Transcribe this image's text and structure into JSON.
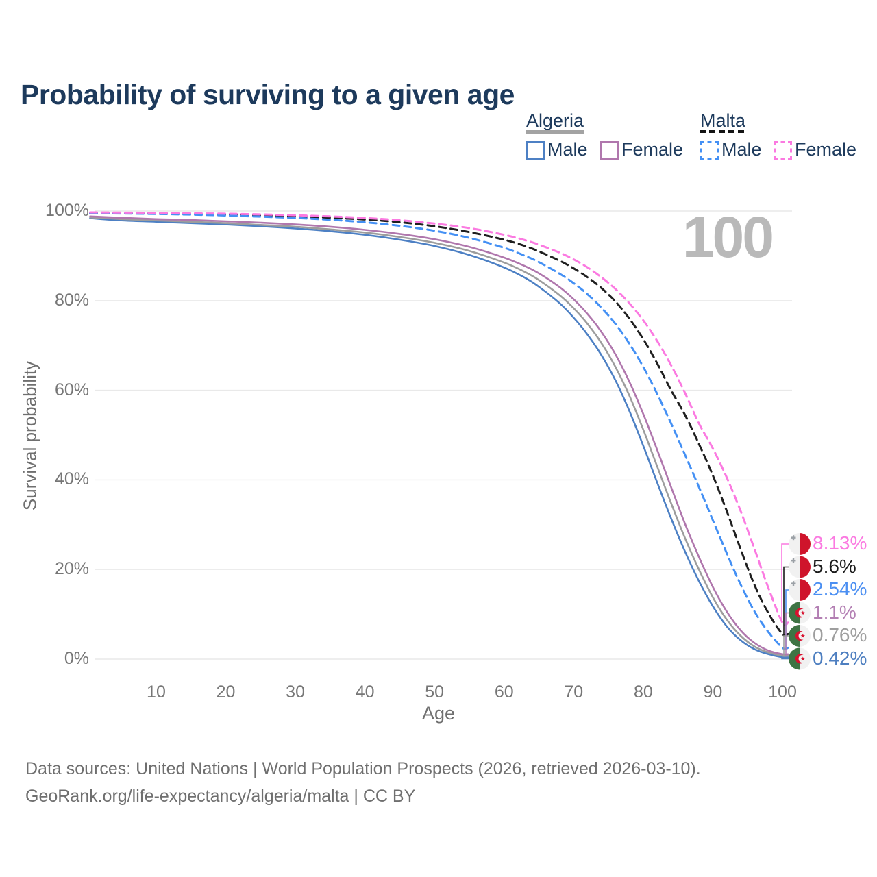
{
  "page": {
    "title": "Probability of surviving to a given age"
  },
  "watermark": "100",
  "legend": {
    "groups": [
      {
        "label": "Algeria",
        "line_style": "solid",
        "underline_color": "#a3a3a3",
        "items": [
          {
            "label": "Male",
            "color": "#4d80c4",
            "dashed": false
          },
          {
            "label": "Female",
            "color": "#b077ad",
            "dashed": false
          }
        ]
      },
      {
        "label": "Malta",
        "line_style": "dashed",
        "underline_color": "#141414",
        "items": [
          {
            "label": "Male",
            "color": "#4490f4",
            "dashed": true
          },
          {
            "label": "Female",
            "color": "#fb7ae1",
            "dashed": true
          }
        ]
      }
    ]
  },
  "chart_data": {
    "type": "line",
    "title": "Probability of surviving to a given age",
    "xlabel": "Age",
    "ylabel": "Survival probability",
    "xlim": [
      0,
      100
    ],
    "ylim": [
      0,
      100
    ],
    "grid": "horizontal",
    "legend_position": "top-right",
    "x_ticks": [
      {
        "label": "10",
        "value": 10
      },
      {
        "label": "20",
        "value": 20
      },
      {
        "label": "30",
        "value": 30
      },
      {
        "label": "40",
        "value": 40
      },
      {
        "label": "50",
        "value": 50
      },
      {
        "label": "60",
        "value": 60
      },
      {
        "label": "70",
        "value": 70
      },
      {
        "label": "80",
        "value": 80
      },
      {
        "label": "90",
        "value": 90
      },
      {
        "label": "100",
        "value": 100
      }
    ],
    "y_ticks": [
      {
        "label": "0%",
        "value": 0
      },
      {
        "label": "20%",
        "value": 20
      },
      {
        "label": "40%",
        "value": 40
      },
      {
        "label": "60%",
        "value": 60
      },
      {
        "label": "80%",
        "value": 80
      },
      {
        "label": "100%",
        "value": 100
      }
    ],
    "series": [
      {
        "id": "algeria-male",
        "name": "Algeria Male",
        "country": "Algeria",
        "sex": "Male",
        "color": "#4d80c4",
        "line_style": "solid",
        "end_label": "0.42%",
        "end_value": 0.42,
        "points": [
          [
            0.5,
            98.4
          ],
          [
            5,
            97.9
          ],
          [
            10,
            97.6
          ],
          [
            15,
            97.3
          ],
          [
            20,
            97.0
          ],
          [
            25,
            96.6
          ],
          [
            30,
            96.1
          ],
          [
            35,
            95.5
          ],
          [
            40,
            94.7
          ],
          [
            45,
            93.6
          ],
          [
            50,
            92.2
          ],
          [
            55,
            90.2
          ],
          [
            60,
            87.4
          ],
          [
            63,
            85.1
          ],
          [
            65,
            83.1
          ],
          [
            68,
            79.4
          ],
          [
            70,
            76.2
          ],
          [
            72,
            72.4
          ],
          [
            74,
            67.8
          ],
          [
            76,
            62.2
          ],
          [
            78,
            55.4
          ],
          [
            80,
            47.6
          ],
          [
            82,
            39.4
          ],
          [
            84,
            31.4
          ],
          [
            86,
            24.0
          ],
          [
            88,
            17.4
          ],
          [
            90,
            11.8
          ],
          [
            92,
            7.3
          ],
          [
            94,
            4.2
          ],
          [
            96,
            2.2
          ],
          [
            98,
            1.1
          ],
          [
            100,
            0.42
          ],
          [
            100.8,
            0.42
          ]
        ]
      },
      {
        "id": "algeria-both",
        "name": "Algeria Both sexes",
        "country": "Algeria",
        "sex": "Both",
        "color": "#9d9d9d",
        "line_style": "solid",
        "end_label": "0.76%",
        "end_value": 0.76,
        "points": [
          [
            0.5,
            98.6
          ],
          [
            5,
            98.2
          ],
          [
            10,
            97.9
          ],
          [
            15,
            97.6
          ],
          [
            20,
            97.3
          ],
          [
            25,
            96.9
          ],
          [
            30,
            96.5
          ],
          [
            35,
            95.9
          ],
          [
            40,
            95.2
          ],
          [
            45,
            94.2
          ],
          [
            50,
            92.9
          ],
          [
            55,
            91.1
          ],
          [
            60,
            88.5
          ],
          [
            63,
            86.4
          ],
          [
            65,
            84.6
          ],
          [
            68,
            81.2
          ],
          [
            70,
            78.3
          ],
          [
            72,
            74.8
          ],
          [
            74,
            70.5
          ],
          [
            76,
            65.2
          ],
          [
            78,
            58.8
          ],
          [
            80,
            51.2
          ],
          [
            82,
            43.0
          ],
          [
            84,
            34.8
          ],
          [
            86,
            27.0
          ],
          [
            88,
            20.0
          ],
          [
            90,
            13.8
          ],
          [
            92,
            8.8
          ],
          [
            94,
            5.2
          ],
          [
            96,
            2.8
          ],
          [
            98,
            1.5
          ],
          [
            100,
            0.76
          ],
          [
            100.8,
            0.76
          ]
        ]
      },
      {
        "id": "algeria-female",
        "name": "Algeria Female",
        "country": "Algeria",
        "sex": "Female",
        "color": "#b077ad",
        "line_style": "solid",
        "end_label": "1.1%",
        "end_value": 1.1,
        "points": [
          [
            0.5,
            98.8
          ],
          [
            5,
            98.5
          ],
          [
            10,
            98.2
          ],
          [
            15,
            98.0
          ],
          [
            20,
            97.7
          ],
          [
            25,
            97.4
          ],
          [
            30,
            97.0
          ],
          [
            35,
            96.5
          ],
          [
            40,
            95.8
          ],
          [
            45,
            94.9
          ],
          [
            50,
            93.7
          ],
          [
            55,
            92.0
          ],
          [
            60,
            89.6
          ],
          [
            63,
            87.7
          ],
          [
            65,
            86.1
          ],
          [
            68,
            83.0
          ],
          [
            70,
            80.3
          ],
          [
            72,
            77.0
          ],
          [
            74,
            73.0
          ],
          [
            76,
            68.0
          ],
          [
            78,
            61.9
          ],
          [
            80,
            54.7
          ],
          [
            82,
            46.7
          ],
          [
            84,
            38.4
          ],
          [
            86,
            30.2
          ],
          [
            88,
            22.8
          ],
          [
            90,
            16.1
          ],
          [
            92,
            10.6
          ],
          [
            94,
            6.4
          ],
          [
            96,
            3.6
          ],
          [
            98,
            1.9
          ],
          [
            100,
            1.1
          ],
          [
            100.8,
            1.1
          ]
        ]
      },
      {
        "id": "malta-both",
        "name": "Malta Both sexes",
        "country": "Malta",
        "sex": "Both",
        "color": "#1f1f1f",
        "line_style": "dashed",
        "end_label": "5.6%",
        "end_value": 5.6,
        "points": [
          [
            0.5,
            99.6
          ],
          [
            5,
            99.55
          ],
          [
            10,
            99.5
          ],
          [
            15,
            99.4
          ],
          [
            20,
            99.25
          ],
          [
            25,
            99.05
          ],
          [
            30,
            98.8
          ],
          [
            35,
            98.5
          ],
          [
            40,
            98.1
          ],
          [
            45,
            97.5
          ],
          [
            50,
            96.6
          ],
          [
            55,
            95.3
          ],
          [
            60,
            93.6
          ],
          [
            63,
            92.2
          ],
          [
            65,
            91.0
          ],
          [
            68,
            88.9
          ],
          [
            70,
            87.2
          ],
          [
            72,
            85.2
          ],
          [
            74,
            82.8
          ],
          [
            76,
            79.8
          ],
          [
            78,
            76.0
          ],
          [
            80,
            71.4
          ],
          [
            82,
            66.0
          ],
          [
            84,
            60.0
          ],
          [
            86,
            54.5
          ],
          [
            88,
            48.0
          ],
          [
            90,
            41.0
          ],
          [
            92,
            33.0
          ],
          [
            94,
            24.5
          ],
          [
            96,
            16.5
          ],
          [
            98,
            10.2
          ],
          [
            100,
            5.6
          ],
          [
            100.8,
            5.6
          ]
        ]
      },
      {
        "id": "malta-male",
        "name": "Malta Male",
        "country": "Malta",
        "sex": "Male",
        "color": "#4490f4",
        "line_style": "dashed",
        "end_label": "2.54%",
        "end_value": 2.54,
        "points": [
          [
            0.5,
            99.5
          ],
          [
            5,
            99.45
          ],
          [
            10,
            99.35
          ],
          [
            15,
            99.2
          ],
          [
            20,
            99.0
          ],
          [
            25,
            98.75
          ],
          [
            30,
            98.45
          ],
          [
            35,
            98.05
          ],
          [
            40,
            97.5
          ],
          [
            45,
            96.7
          ],
          [
            50,
            95.6
          ],
          [
            55,
            94.0
          ],
          [
            60,
            91.8
          ],
          [
            63,
            90.0
          ],
          [
            65,
            88.6
          ],
          [
            68,
            86.0
          ],
          [
            70,
            83.9
          ],
          [
            72,
            81.4
          ],
          [
            74,
            78.4
          ],
          [
            76,
            74.8
          ],
          [
            78,
            70.4
          ],
          [
            80,
            65.2
          ],
          [
            82,
            59.2
          ],
          [
            84,
            52.6
          ],
          [
            86,
            45.6
          ],
          [
            88,
            38.4
          ],
          [
            90,
            31.0
          ],
          [
            92,
            23.6
          ],
          [
            94,
            16.6
          ],
          [
            96,
            10.6
          ],
          [
            98,
            6.0
          ],
          [
            100,
            2.54
          ],
          [
            100.8,
            2.54
          ]
        ]
      },
      {
        "id": "malta-female",
        "name": "Malta Female",
        "country": "Malta",
        "sex": "Female",
        "color": "#fb7ae1",
        "line_style": "dashed",
        "end_label": "8.13%",
        "end_value": 8.13,
        "points": [
          [
            0.5,
            99.7
          ],
          [
            5,
            99.65
          ],
          [
            10,
            99.6
          ],
          [
            15,
            99.5
          ],
          [
            20,
            99.4
          ],
          [
            25,
            99.25
          ],
          [
            30,
            99.05
          ],
          [
            35,
            98.8
          ],
          [
            40,
            98.45
          ],
          [
            45,
            97.95
          ],
          [
            50,
            97.2
          ],
          [
            55,
            96.2
          ],
          [
            60,
            94.7
          ],
          [
            63,
            93.5
          ],
          [
            65,
            92.5
          ],
          [
            68,
            90.7
          ],
          [
            70,
            89.2
          ],
          [
            72,
            87.4
          ],
          [
            74,
            85.2
          ],
          [
            76,
            82.6
          ],
          [
            78,
            79.4
          ],
          [
            80,
            75.6
          ],
          [
            82,
            71.0
          ],
          [
            84,
            65.6
          ],
          [
            86,
            59.4
          ],
          [
            88,
            52.6
          ],
          [
            90,
            47.0
          ],
          [
            92,
            40.5
          ],
          [
            94,
            33.0
          ],
          [
            96,
            24.5
          ],
          [
            98,
            15.8
          ],
          [
            100,
            8.13
          ],
          [
            100.8,
            8.13
          ]
        ]
      }
    ]
  },
  "end_labels": [
    {
      "series_id": "malta-female",
      "flag": "malta",
      "text": "8.13%",
      "value": 8.13,
      "color": "#fb7ae1"
    },
    {
      "series_id": "malta-both",
      "flag": "malta",
      "text": "5.6%",
      "value": 5.6,
      "color": "#1a1a1a"
    },
    {
      "series_id": "malta-male",
      "flag": "malta",
      "text": "2.54%",
      "value": 2.54,
      "color": "#4b8ff2"
    },
    {
      "series_id": "algeria-female",
      "flag": "algeria",
      "text": "1.1%",
      "value": 1.1,
      "color": "#b37fb3"
    },
    {
      "series_id": "algeria-both",
      "flag": "algeria",
      "text": "0.76%",
      "value": 0.76,
      "color": "#9e9e9e"
    },
    {
      "series_id": "algeria-male",
      "flag": "algeria",
      "text": "0.42%",
      "value": 0.42,
      "color": "#4e7fc0"
    }
  ],
  "flags": {
    "malta": {
      "left_color": "#f1f1f1",
      "right_color": "#cf142b",
      "cross_color": "#9ba1a6"
    },
    "algeria": {
      "left_color": "#3e7444",
      "right_color": "#f1f1f1",
      "emblem_color": "#d8102e"
    }
  },
  "footer": {
    "line1": "Data sources: United Nations | World Population Prospects (2026, retrieved 2026-03-10).",
    "line2": "GeoRank.org/life-expectancy/algeria/malta | CC BY"
  }
}
